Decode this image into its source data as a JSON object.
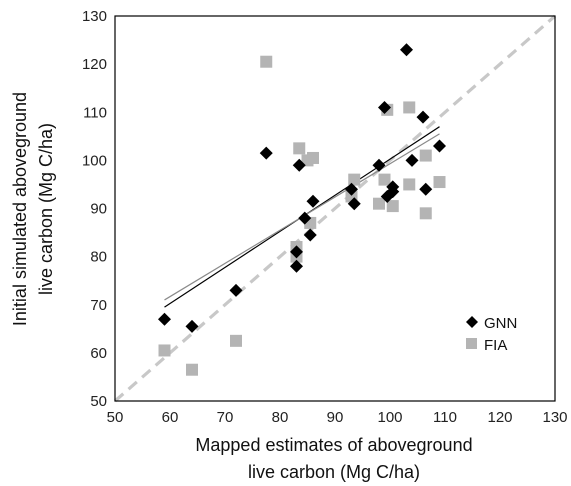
{
  "chart_data": {
    "type": "scatter",
    "xlabel_lines": [
      "Mapped estimates of aboveground",
      "live carbon (Mg C/ha)"
    ],
    "ylabel_lines": [
      "Initial simulated aboveground",
      "live carbon (Mg C/ha)"
    ],
    "xlim": [
      50,
      130
    ],
    "ylim": [
      50,
      130
    ],
    "x_ticks": [
      50,
      60,
      70,
      80,
      90,
      100,
      110,
      120,
      130
    ],
    "y_ticks": [
      50,
      60,
      70,
      80,
      90,
      100,
      110,
      120,
      130
    ],
    "grid": false,
    "legend_position": "bottom-right",
    "reference_line": {
      "style": "dashed",
      "color": "#c8c8c8",
      "from": [
        50,
        50
      ],
      "to": [
        130,
        130
      ]
    },
    "series": [
      {
        "name": "GNN",
        "marker": "diamond",
        "color": "#000000",
        "trend_color": "#000000",
        "trend": {
          "from": [
            59,
            69.5
          ],
          "to": [
            109,
            107
          ]
        },
        "points": [
          [
            59,
            67
          ],
          [
            64,
            65.5
          ],
          [
            72,
            73
          ],
          [
            77.5,
            101.5
          ],
          [
            83,
            78
          ],
          [
            83,
            81
          ],
          [
            83.5,
            99
          ],
          [
            84.5,
            88
          ],
          [
            85.5,
            84.5
          ],
          [
            86,
            91.5
          ],
          [
            93,
            94
          ],
          [
            93.5,
            91
          ],
          [
            98,
            99
          ],
          [
            99,
            111
          ],
          [
            99.5,
            92.5
          ],
          [
            100.5,
            93.5
          ],
          [
            100.5,
            94.5
          ],
          [
            103,
            123
          ],
          [
            104,
            100
          ],
          [
            106,
            109
          ],
          [
            106.5,
            94
          ],
          [
            109,
            103
          ]
        ]
      },
      {
        "name": "FIA",
        "marker": "square",
        "color": "#b4b4b4",
        "trend_color": "#8a8a8a",
        "trend": {
          "from": [
            59,
            71
          ],
          "to": [
            109,
            105.5
          ]
        },
        "points": [
          [
            59,
            60.5
          ],
          [
            64,
            56.5
          ],
          [
            72,
            62.5
          ],
          [
            77.5,
            120.5
          ],
          [
            83,
            80
          ],
          [
            83,
            82
          ],
          [
            83.5,
            102.5
          ],
          [
            85,
            100
          ],
          [
            86,
            100.5
          ],
          [
            85.5,
            87
          ],
          [
            93,
            92.5
          ],
          [
            93.5,
            96
          ],
          [
            98,
            91
          ],
          [
            99,
            96
          ],
          [
            99.5,
            110.5
          ],
          [
            100.5,
            90.5
          ],
          [
            103.5,
            111
          ],
          [
            103.5,
            95
          ],
          [
            106.5,
            89
          ],
          [
            106.5,
            101
          ],
          [
            109,
            95.5
          ]
        ]
      }
    ]
  }
}
